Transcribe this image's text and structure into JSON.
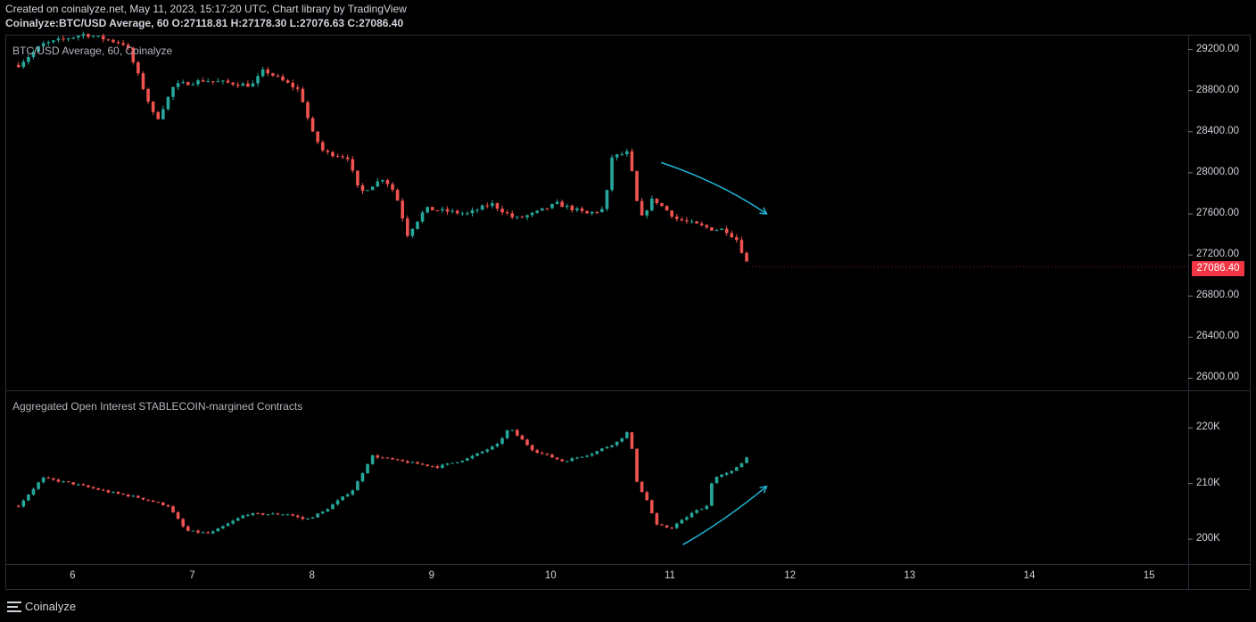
{
  "header": {
    "line1": "Created on coinalyze.net, May 11, 2023, 15:17:20 UTC, Chart library by TradingView",
    "symbol": "Coinalyze:BTC/USD Average, 60",
    "o_label": "O:",
    "o": "27118.81",
    "h_label": "H:",
    "h": "27178.30",
    "l_label": "L:",
    "l": "27076.63",
    "c_label": "C:",
    "c": "27086.40"
  },
  "price_pane": {
    "title": "BTC/USD Average, 60, Coinalyze",
    "last_price": "27086.40",
    "yticks": [
      "29200.00",
      "28800.00",
      "28400.00",
      "28000.00",
      "27600.00",
      "27200.00",
      "26800.00",
      "26400.00",
      "26000.00"
    ]
  },
  "oi_pane": {
    "title": "Aggregated Open Interest STABLECOIN-margined Contracts",
    "yticks": [
      "220K",
      "210K",
      "200K"
    ]
  },
  "xticks": [
    "6",
    "7",
    "8",
    "9",
    "10",
    "11",
    "12",
    "13",
    "14",
    "15"
  ],
  "footer": {
    "brand": "Coinalyze"
  },
  "colors": {
    "up": "#26a69a",
    "down": "#ef5350",
    "arrow": "#22b4d6",
    "last_price_bg": "#f23645"
  },
  "chart_data": [
    {
      "type": "candlestick",
      "title": "BTC/USD Average, 60, Coinalyze",
      "x_range": [
        "5.5",
        "15.3"
      ],
      "ylim": [
        25900,
        29300
      ],
      "x_label_ticks": [
        "6",
        "7",
        "8",
        "9",
        "10",
        "11",
        "12",
        "13",
        "14",
        "15"
      ],
      "path_waypoints": [
        {
          "x": 5.55,
          "y": 29050
        },
        {
          "x": 5.75,
          "y": 29250
        },
        {
          "x": 6.1,
          "y": 29350
        },
        {
          "x": 6.45,
          "y": 29250
        },
        {
          "x": 6.6,
          "y": 28800
        },
        {
          "x": 6.7,
          "y": 28500
        },
        {
          "x": 6.85,
          "y": 28850
        },
        {
          "x": 7.1,
          "y": 28900
        },
        {
          "x": 7.5,
          "y": 28850
        },
        {
          "x": 7.6,
          "y": 29000
        },
        {
          "x": 7.9,
          "y": 28800
        },
        {
          "x": 8.0,
          "y": 28400
        },
        {
          "x": 8.1,
          "y": 28200
        },
        {
          "x": 8.3,
          "y": 28150
        },
        {
          "x": 8.4,
          "y": 27800
        },
        {
          "x": 8.6,
          "y": 27950
        },
        {
          "x": 8.7,
          "y": 27800
        },
        {
          "x": 8.8,
          "y": 27400
        },
        {
          "x": 8.95,
          "y": 27650
        },
        {
          "x": 9.3,
          "y": 27600
        },
        {
          "x": 9.5,
          "y": 27700
        },
        {
          "x": 9.7,
          "y": 27550
        },
        {
          "x": 9.85,
          "y": 27600
        },
        {
          "x": 10.05,
          "y": 27700
        },
        {
          "x": 10.3,
          "y": 27600
        },
        {
          "x": 10.45,
          "y": 27650
        },
        {
          "x": 10.5,
          "y": 28150
        },
        {
          "x": 10.65,
          "y": 28200
        },
        {
          "x": 10.7,
          "y": 27800
        },
        {
          "x": 10.75,
          "y": 27550
        },
        {
          "x": 10.85,
          "y": 27750
        },
        {
          "x": 10.9,
          "y": 27700
        },
        {
          "x": 11.05,
          "y": 27550
        },
        {
          "x": 11.2,
          "y": 27500
        },
        {
          "x": 11.35,
          "y": 27450
        },
        {
          "x": 11.45,
          "y": 27450
        },
        {
          "x": 11.55,
          "y": 27350
        },
        {
          "x": 11.65,
          "y": 27086
        }
      ],
      "last": 27086.4,
      "annotation": {
        "type": "arrow",
        "from": {
          "x": 10.92,
          "y": 28100
        },
        "to": {
          "x": 11.8,
          "y": 27600
        }
      }
    },
    {
      "type": "candlestick",
      "title": "Aggregated Open Interest STABLECOIN-margined Contracts",
      "x_range": [
        "5.5",
        "15.3"
      ],
      "ylim": [
        196000,
        225500
      ],
      "path_waypoints": [
        {
          "x": 5.55,
          "y": 206000
        },
        {
          "x": 5.75,
          "y": 211000
        },
        {
          "x": 6.0,
          "y": 210000
        },
        {
          "x": 6.3,
          "y": 208500
        },
        {
          "x": 6.55,
          "y": 207500
        },
        {
          "x": 6.8,
          "y": 206000
        },
        {
          "x": 6.95,
          "y": 201500
        },
        {
          "x": 7.15,
          "y": 201000
        },
        {
          "x": 7.45,
          "y": 204500
        },
        {
          "x": 7.8,
          "y": 204500
        },
        {
          "x": 7.95,
          "y": 203500
        },
        {
          "x": 8.1,
          "y": 205000
        },
        {
          "x": 8.35,
          "y": 209000
        },
        {
          "x": 8.5,
          "y": 215000
        },
        {
          "x": 8.75,
          "y": 214000
        },
        {
          "x": 9.05,
          "y": 213000
        },
        {
          "x": 9.3,
          "y": 214500
        },
        {
          "x": 9.55,
          "y": 217000
        },
        {
          "x": 9.65,
          "y": 220000
        },
        {
          "x": 9.85,
          "y": 216000
        },
        {
          "x": 10.1,
          "y": 214000
        },
        {
          "x": 10.35,
          "y": 215500
        },
        {
          "x": 10.55,
          "y": 217500
        },
        {
          "x": 10.65,
          "y": 219500
        },
        {
          "x": 10.72,
          "y": 210000
        },
        {
          "x": 10.8,
          "y": 207000
        },
        {
          "x": 10.88,
          "y": 202500
        },
        {
          "x": 11.0,
          "y": 202000
        },
        {
          "x": 11.2,
          "y": 205000
        },
        {
          "x": 11.3,
          "y": 206000
        },
        {
          "x": 11.35,
          "y": 211000
        },
        {
          "x": 11.5,
          "y": 212000
        },
        {
          "x": 11.65,
          "y": 215000
        }
      ],
      "annotation": {
        "type": "arrow",
        "from": {
          "x": 11.1,
          "y": 199000
        },
        "to": {
          "x": 11.8,
          "y": 209500
        }
      }
    }
  ]
}
